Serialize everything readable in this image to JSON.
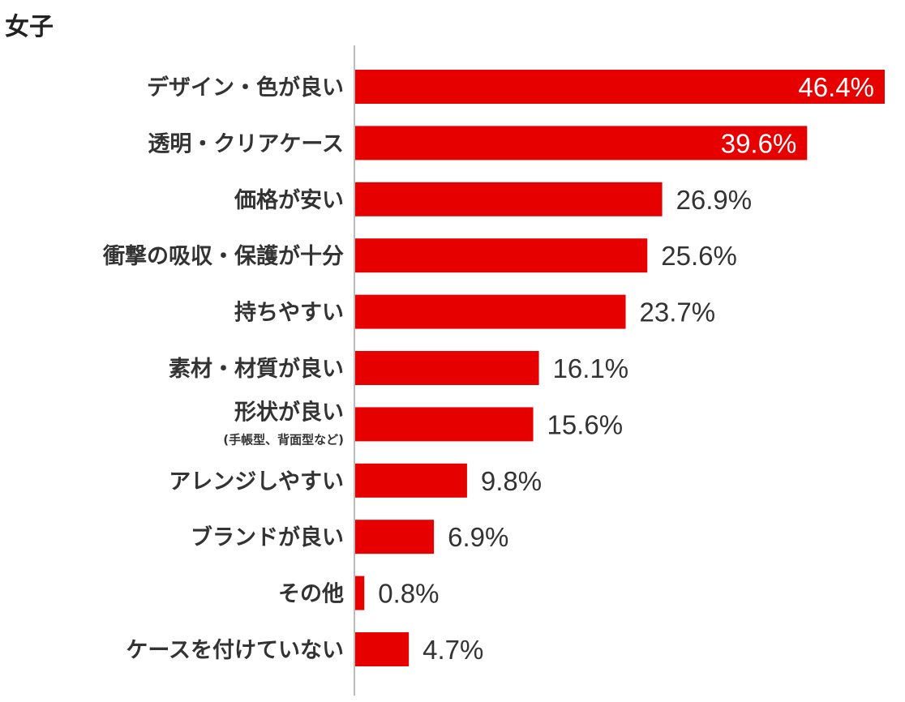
{
  "chart_data": {
    "type": "bar",
    "orientation": "horizontal",
    "title": "女子",
    "categories": [
      "デザイン・色が良い",
      "透明・クリアケース",
      "価格が安い",
      "衝撃の吸収・保護が十分",
      "持ちやすい",
      "素材・材質が良い",
      "形状が良い",
      "アレンジしやすい",
      "ブランドが良い",
      "その他",
      "ケースを付けていない"
    ],
    "category_notes": [
      "",
      "",
      "",
      "",
      "",
      "",
      "(手帳型、背面型など)",
      "",
      "",
      "",
      ""
    ],
    "values": [
      46.4,
      39.6,
      26.9,
      25.6,
      23.7,
      16.1,
      15.6,
      9.8,
      6.9,
      0.8,
      4.7
    ],
    "value_labels": [
      "46.4%",
      "39.6%",
      "26.9%",
      "25.6%",
      "23.7%",
      "16.1%",
      "15.6%",
      "9.8%",
      "6.9%",
      "0.8%",
      "4.7%"
    ],
    "xlim": [
      0,
      48
    ],
    "grid": false,
    "legend": "none",
    "bar_color": "#e60000",
    "inside_label_color": "#ffffff",
    "outside_label_color": "#333333",
    "axis_color": "#bbbbbb"
  }
}
